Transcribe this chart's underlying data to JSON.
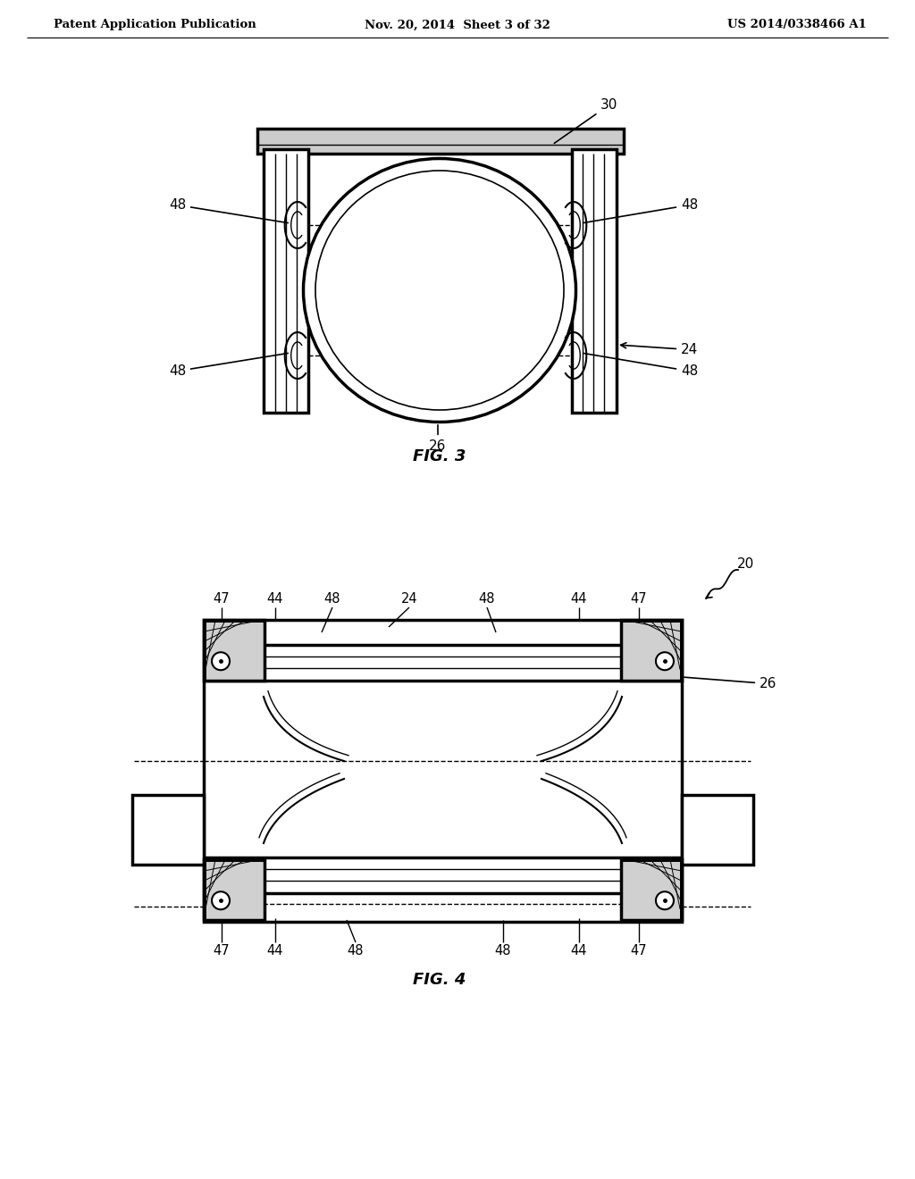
{
  "bg_color": "#ffffff",
  "header_left": "Patent Application Publication",
  "header_mid": "Nov. 20, 2014  Sheet 3 of 32",
  "header_right": "US 2014/0338466 A1",
  "fig3_label": "FIG. 3",
  "fig4_label": "FIG. 4",
  "lc": "#000000",
  "lw_main": 1.5,
  "lw_thick": 2.5
}
